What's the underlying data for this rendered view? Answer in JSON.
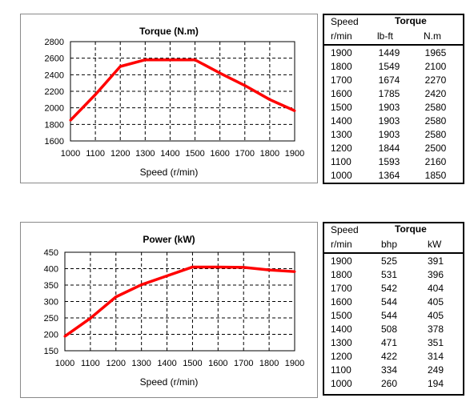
{
  "chart_data": [
    {
      "type": "line",
      "title": "Torque (N.m)",
      "xlabel": "Speed  (r/min)",
      "ylabel": "",
      "x": [
        1000,
        1100,
        1200,
        1300,
        1400,
        1500,
        1600,
        1700,
        1800,
        1900
      ],
      "xlim": [
        1000,
        1900
      ],
      "ylim": [
        1600,
        2800
      ],
      "yticks": [
        1600,
        1800,
        2000,
        2200,
        2400,
        2600,
        2800
      ],
      "grid": true,
      "series": [
        {
          "values": [
            1850,
            2160,
            2500,
            2580,
            2580,
            2580,
            2420,
            2270,
            2100,
            1965
          ],
          "color": "#ff0000"
        }
      ]
    },
    {
      "type": "line",
      "title": "Power (kW)",
      "xlabel": "Speed  (r/min)",
      "ylabel": "",
      "x": [
        1000,
        1100,
        1200,
        1300,
        1400,
        1500,
        1600,
        1700,
        1800,
        1900
      ],
      "xlim": [
        1000,
        1900
      ],
      "ylim": [
        150,
        450
      ],
      "yticks": [
        150,
        200,
        250,
        300,
        350,
        400,
        450
      ],
      "grid": true,
      "series": [
        {
          "values": [
            194,
            249,
            314,
            351,
            378,
            405,
            405,
            404,
            396,
            391
          ],
          "color": "#ff0000"
        }
      ]
    },
    {
      "type": "table",
      "headers": [
        "Speed",
        "Torque",
        "r/min",
        "lb-ft",
        "N.m"
      ],
      "rows": [
        [
          "1900",
          "1449",
          "1965"
        ],
        [
          "1800",
          "1549",
          "2100"
        ],
        [
          "1700",
          "1674",
          "2270"
        ],
        [
          "1600",
          "1785",
          "2420"
        ],
        [
          "1500",
          "1903",
          "2580"
        ],
        [
          "1400",
          "1903",
          "2580"
        ],
        [
          "1300",
          "1903",
          "2580"
        ],
        [
          "1200",
          "1844",
          "2500"
        ],
        [
          "1100",
          "1593",
          "2160"
        ],
        [
          "1000",
          "1364",
          "1850"
        ]
      ]
    },
    {
      "type": "table",
      "headers": [
        "Speed",
        "Torque",
        "r/min",
        "bhp",
        "kW"
      ],
      "rows": [
        [
          "1900",
          "525",
          "391"
        ],
        [
          "1800",
          "531",
          "396"
        ],
        [
          "1700",
          "542",
          "404"
        ],
        [
          "1600",
          "544",
          "405"
        ],
        [
          "1500",
          "544",
          "405"
        ],
        [
          "1400",
          "508",
          "378"
        ],
        [
          "1300",
          "471",
          "351"
        ],
        [
          "1200",
          "422",
          "314"
        ],
        [
          "1100",
          "334",
          "249"
        ],
        [
          "1000",
          "260",
          "194"
        ]
      ]
    }
  ]
}
